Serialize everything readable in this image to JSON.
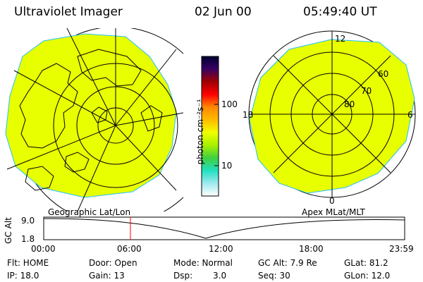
{
  "header": {
    "title": "Ultraviolet Imager",
    "date": "02 Jun 00",
    "time": "05:49:40 UT"
  },
  "colorbar": {
    "unit_label": "photon cm⁻²s⁻¹",
    "ticks": [
      "100",
      "10"
    ],
    "gradient_stops": [
      "#000033",
      "#3a0060",
      "#a00000",
      "#ff0000",
      "#ff8800",
      "#ffbb00",
      "#f0ff00",
      "#a8f000",
      "#40d040",
      "#20e0c0",
      "#9fe9ef",
      "#ffffff"
    ]
  },
  "left_panel": {
    "label": "Geographic Lat/Lon",
    "fill_color": "#e8ff00"
  },
  "right_panel": {
    "label": "Apex MLat/MLT",
    "mlt_labels": [
      "12",
      "18",
      "6",
      "0"
    ],
    "lat_labels": [
      "60",
      "70",
      "80"
    ],
    "fill_color": "#e8ff00"
  },
  "altitude_plot": {
    "ylabel": "GC Alt",
    "yticks": [
      "9.0",
      "1.8"
    ],
    "xticks": [
      "00:00",
      "06:00",
      "12:00",
      "18:00",
      "23:59"
    ],
    "marker_color": "#ff0000"
  },
  "info": {
    "flt": "Flt: HOME",
    "ip": "IP: 18.0",
    "door": "Door: Open",
    "gain": "Gain: 13",
    "mode": "Mode: Normal",
    "dsp_label": "Dsp:",
    "dsp_value": "3.0",
    "gc_alt": "GC Alt: 7.9 Re",
    "seq": "Seq: 30",
    "glat": "GLat: 81.2",
    "glon": "GLon: 12.0"
  }
}
